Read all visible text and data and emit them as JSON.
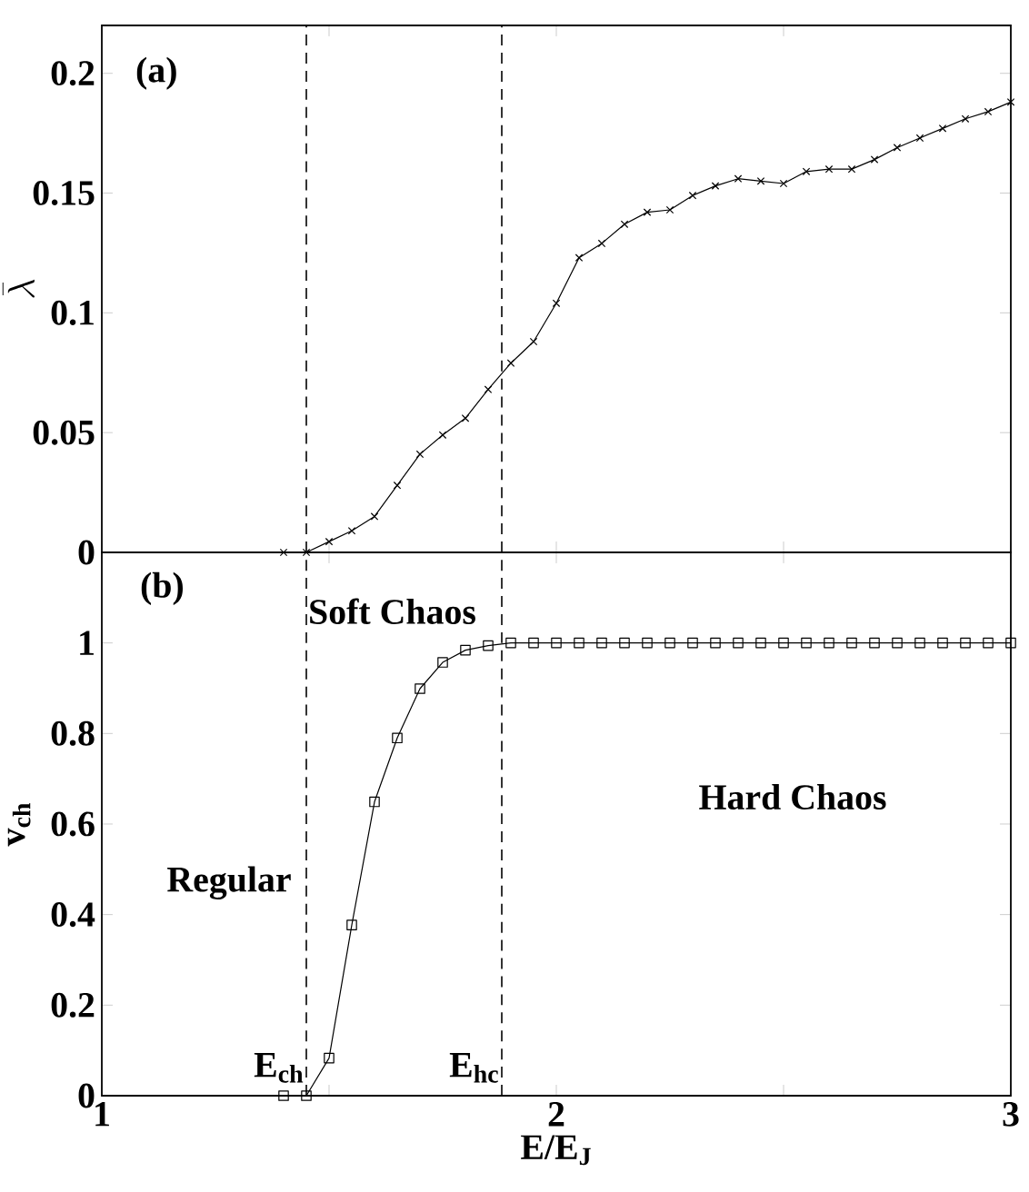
{
  "chart_data": [
    {
      "type": "line",
      "ylabel": "\\bar{\\lambda}",
      "annotations": [
        "(a)"
      ],
      "marker": "cross",
      "line_style": "solid",
      "tick_labels": "y",
      "x": [
        1.4,
        1.45,
        1.5,
        1.55,
        1.6,
        1.65,
        1.7,
        1.75,
        1.8,
        1.85,
        1.9,
        1.95,
        2.0,
        2.05,
        2.1,
        2.15,
        2.2,
        2.25,
        2.3,
        2.35,
        2.4,
        2.45,
        2.5,
        2.55,
        2.6,
        2.65,
        2.7,
        2.75,
        2.8,
        2.85,
        2.9,
        2.95,
        3.0
      ],
      "series": [
        {
          "color": "#000000",
          "values": [
            0,
            0,
            0.0045,
            0.009,
            0.015,
            0.028,
            0.041,
            0.049,
            0.056,
            0.068,
            0.079,
            0.088,
            0.104,
            0.123,
            0.129,
            0.137,
            0.142,
            0.143,
            0.149,
            0.153,
            0.156,
            0.155,
            0.154,
            0.159,
            0.16,
            0.16,
            0.164,
            0.169,
            0.173,
            0.177,
            0.181,
            0.184,
            0.188
          ]
        }
      ],
      "xlim": [
        1,
        3
      ],
      "xticks": [
        1,
        1.5,
        2,
        2.5,
        3
      ],
      "ylim": [
        0,
        0.22
      ],
      "yticks": [
        0,
        0.05,
        0.1,
        0.15,
        0.2
      ],
      "ref_lines": [
        {
          "axis": "x",
          "value": 1.45,
          "line_style": "dashed"
        },
        {
          "axis": "x",
          "value": 1.88,
          "line_style": "dashed"
        }
      ]
    },
    {
      "type": "line",
      "xlabel": "E/E$_{J}$",
      "ylabel": "v$_{ch}$",
      "annotations": [
        "(b)",
        "Soft Chaos",
        "Regular",
        "Hard Chaos"
      ],
      "marker": "square",
      "line_style": "solid",
      "x": [
        1.4,
        1.45,
        1.5,
        1.55,
        1.6,
        1.65,
        1.7,
        1.75,
        1.8,
        1.85,
        1.9,
        1.95,
        2.0,
        2.05,
        2.1,
        2.15,
        2.2,
        2.25,
        2.3,
        2.35,
        2.4,
        2.45,
        2.5,
        2.55,
        2.6,
        2.65,
        2.7,
        2.75,
        2.8,
        2.85,
        2.9,
        2.95,
        3.0
      ],
      "series": [
        {
          "color": "#000000",
          "values": [
            0,
            0,
            0.083,
            0.377,
            0.649,
            0.79,
            0.899,
            0.957,
            0.984,
            0.994,
            1,
            1,
            1,
            1,
            1,
            1,
            1,
            1,
            1,
            1,
            1,
            1,
            1,
            1,
            1,
            1,
            1,
            1,
            1,
            1,
            1,
            1,
            1
          ]
        }
      ],
      "xlim": [
        1,
        3
      ],
      "xticks": [
        1,
        {
          "value": 1.5,
          "label": null
        },
        2,
        {
          "value": 2.5,
          "label": null
        },
        3
      ],
      "ylim": [
        0,
        1.2
      ],
      "yticks": [
        0,
        0.2,
        0.4,
        0.6,
        0.8,
        1
      ],
      "ref_lines": [
        {
          "axis": "x",
          "value": 1.45,
          "line_style": "dashed",
          "label": "E$_{ch}$"
        },
        {
          "axis": "x",
          "value": 1.88,
          "line_style": "dashed",
          "label": "E$_{hc}$"
        }
      ]
    }
  ]
}
